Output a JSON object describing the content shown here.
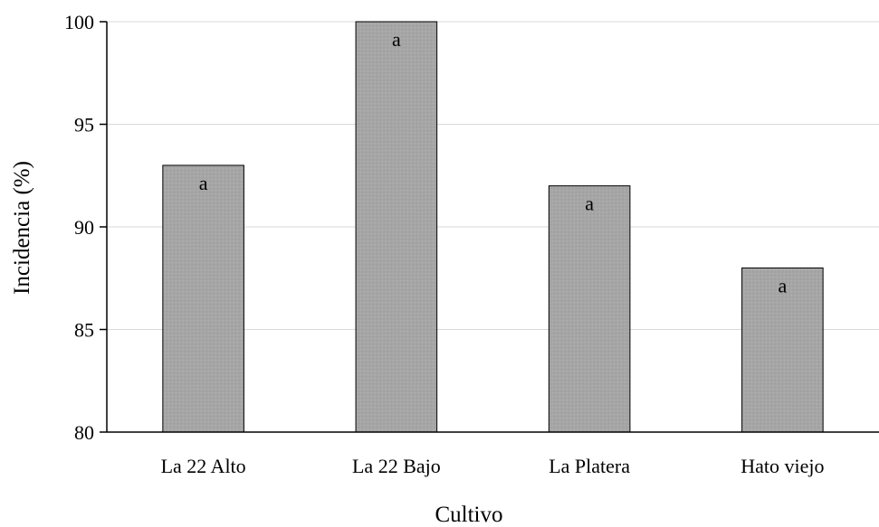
{
  "chart_data": {
    "type": "bar",
    "title": "",
    "xlabel": "Cultivo",
    "ylabel": "Incidencia (%)",
    "categories": [
      "La 22 Alto",
      "La 22 Bajo",
      "La Platera",
      "Hato viejo"
    ],
    "values": [
      93,
      100,
      92,
      88
    ],
    "bar_labels": [
      "a",
      "a",
      "a",
      "a"
    ],
    "ylim": [
      80,
      100
    ],
    "yticks": [
      80,
      85,
      90,
      95,
      100
    ],
    "grid": true,
    "legend": "none",
    "colors": {
      "bar_fill": "#a6a6a6",
      "bar_stroke": "#000000",
      "grid": "#d9d9d9"
    }
  }
}
